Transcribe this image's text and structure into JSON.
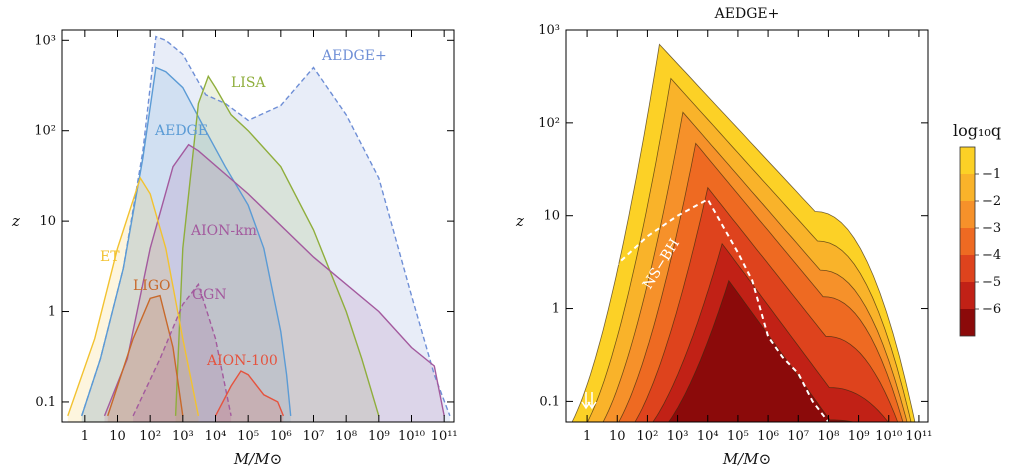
{
  "chart_data": [
    {
      "type": "area",
      "title": "",
      "xlabel": "M/M⊙",
      "ylabel": "z",
      "x_scale": "log",
      "y_scale": "log",
      "xlim": [
        0.2,
        200000000000.0
      ],
      "ylim": [
        0.06,
        1300
      ],
      "x_tick_labels": [
        "1",
        "10",
        "10²",
        "10³",
        "10⁴",
        "10⁵",
        "10⁶",
        "10⁷",
        "10⁸",
        "10⁹",
        "10¹⁰",
        "10¹¹"
      ],
      "y_tick_labels": [
        "0.1",
        "1",
        "10",
        "10²",
        "10³"
      ],
      "series": [
        {
          "name": "AEDGE+",
          "color": "#6f8fd6",
          "line": "dashed",
          "x": [
            0.8,
            3,
            15,
            60,
            150,
            300,
            1000,
            5000,
            20000,
            100000.0,
            1000000.0,
            10000000.0,
            100000000.0,
            1000000000.0,
            10000000000.0,
            50000000000.0,
            150000000000.0
          ],
          "y": [
            0.07,
            0.3,
            3,
            60,
            1100,
            1000,
            700,
            250,
            200,
            130,
            190,
            500,
            150,
            30,
            1.5,
            0.2,
            0.07
          ]
        },
        {
          "name": "AEDGE",
          "color": "#5b9bd5",
          "line": "solid",
          "x": [
            0.8,
            3,
            15,
            60,
            150,
            300,
            1000,
            5000,
            20000,
            100000.0,
            300000.0,
            1000000.0,
            1500000.0,
            2000000.0
          ],
          "y": [
            0.07,
            0.3,
            3,
            50,
            500,
            450,
            300,
            100,
            40,
            15,
            5,
            0.6,
            0.2,
            0.07
          ]
        },
        {
          "name": "LISA",
          "color": "#8fae3c",
          "line": "solid",
          "x": [
            600,
            1000,
            3000,
            6000,
            10000,
            30000,
            100000.0,
            1000000.0,
            10000000.0,
            100000000.0,
            300000000.0,
            1000000000.0
          ],
          "y": [
            0.07,
            5,
            200,
            400,
            300,
            150,
            100,
            40,
            8,
            1,
            0.3,
            0.07
          ]
        },
        {
          "name": "AION-km",
          "color": "#a35a9e",
          "line": "solid",
          "x": [
            4,
            20,
            100,
            500,
            1500,
            3000,
            100000.0,
            10000000.0,
            1000000000.0,
            10000000000.0,
            50000000000.0,
            100000000000.0
          ],
          "y": [
            0.07,
            0.3,
            5,
            40,
            70,
            60,
            20,
            4,
            1,
            0.4,
            0.25,
            0.07
          ]
        },
        {
          "name": "ET",
          "color": "#f2c230",
          "line": "solid",
          "x": [
            0.3,
            2,
            10,
            50,
            100,
            300,
            1000,
            3000
          ],
          "y": [
            0.07,
            0.5,
            5,
            30,
            20,
            5,
            0.5,
            0.07
          ]
        },
        {
          "name": "LIGO",
          "color": "#c8692a",
          "line": "solid",
          "x": [
            5,
            30,
            100,
            200,
            500,
            1000
          ],
          "y": [
            0.07,
            0.5,
            1.4,
            1.5,
            0.4,
            0.07
          ]
        },
        {
          "name": "GGN",
          "color": "#a35a9e",
          "line": "dashed",
          "x": [
            30,
            200,
            1000,
            3000,
            10000,
            30000
          ],
          "y": [
            0.07,
            0.3,
            1.2,
            2,
            0.5,
            0.07
          ]
        },
        {
          "name": "AION-100",
          "color": "#e5533e",
          "line": "solid",
          "x": [
            10000,
            30000,
            60000,
            100000.0,
            300000.0,
            800000.0,
            1200000.0
          ],
          "y": [
            0.07,
            0.15,
            0.22,
            0.2,
            0.12,
            0.1,
            0.07
          ]
        }
      ]
    },
    {
      "type": "heatmap",
      "title": "AEDGE+",
      "xlabel": "M/M⊙",
      "ylabel": "z",
      "x_scale": "log",
      "y_scale": "log",
      "xlim": [
        0.2,
        200000000000.0
      ],
      "ylim": [
        0.06,
        1000
      ],
      "x_tick_labels": [
        "1",
        "10",
        "10²",
        "10³",
        "10⁴",
        "10⁵",
        "10⁶",
        "10⁷",
        "10⁸",
        "10⁹",
        "10¹⁰",
        "10¹¹"
      ],
      "y_tick_labels": [
        "0.1",
        "1",
        "10",
        "10²",
        "10³"
      ],
      "colorbar": {
        "label": "log₁₀q",
        "levels": [
          0,
          -1,
          -2,
          -3,
          -4,
          -5,
          -6,
          -7
        ],
        "tick_labels": [
          "−1",
          "−2",
          "−3",
          "−4",
          "−5",
          "−6"
        ],
        "colors": [
          "#fcd126",
          "#f9b32a",
          "#f6912a",
          "#ee6a22",
          "#de431d",
          "#c12116",
          "#8b0a0a"
        ]
      },
      "contour_peaks": [
        {
          "log10q": -0.5,
          "x": 250,
          "z": 700
        },
        {
          "log10q": -1,
          "x": 600,
          "z": 300
        },
        {
          "log10q": -2,
          "x": 1500,
          "z": 130
        },
        {
          "log10q": -3,
          "x": 4000,
          "z": 60
        },
        {
          "log10q": -4,
          "x": 10000,
          "z": 20
        },
        {
          "log10q": -5,
          "x": 30000,
          "z": 5
        },
        {
          "log10q": -6,
          "x": 50000,
          "z": 2
        }
      ],
      "overlay_line": {
        "name": "NS−BH",
        "style": "dashed",
        "color": "#ffffff",
        "x": [
          0.3,
          1,
          10,
          100,
          1000,
          10000,
          30000,
          100000.0,
          300000.0,
          1000000.0,
          3000000.0,
          10000000.0,
          30000000.0,
          100000000.0
        ],
        "y": [
          0.7,
          1.5,
          3,
          6,
          10,
          15,
          8,
          4,
          2,
          0.5,
          0.3,
          0.2,
          0.1,
          0.06
        ]
      }
    }
  ]
}
